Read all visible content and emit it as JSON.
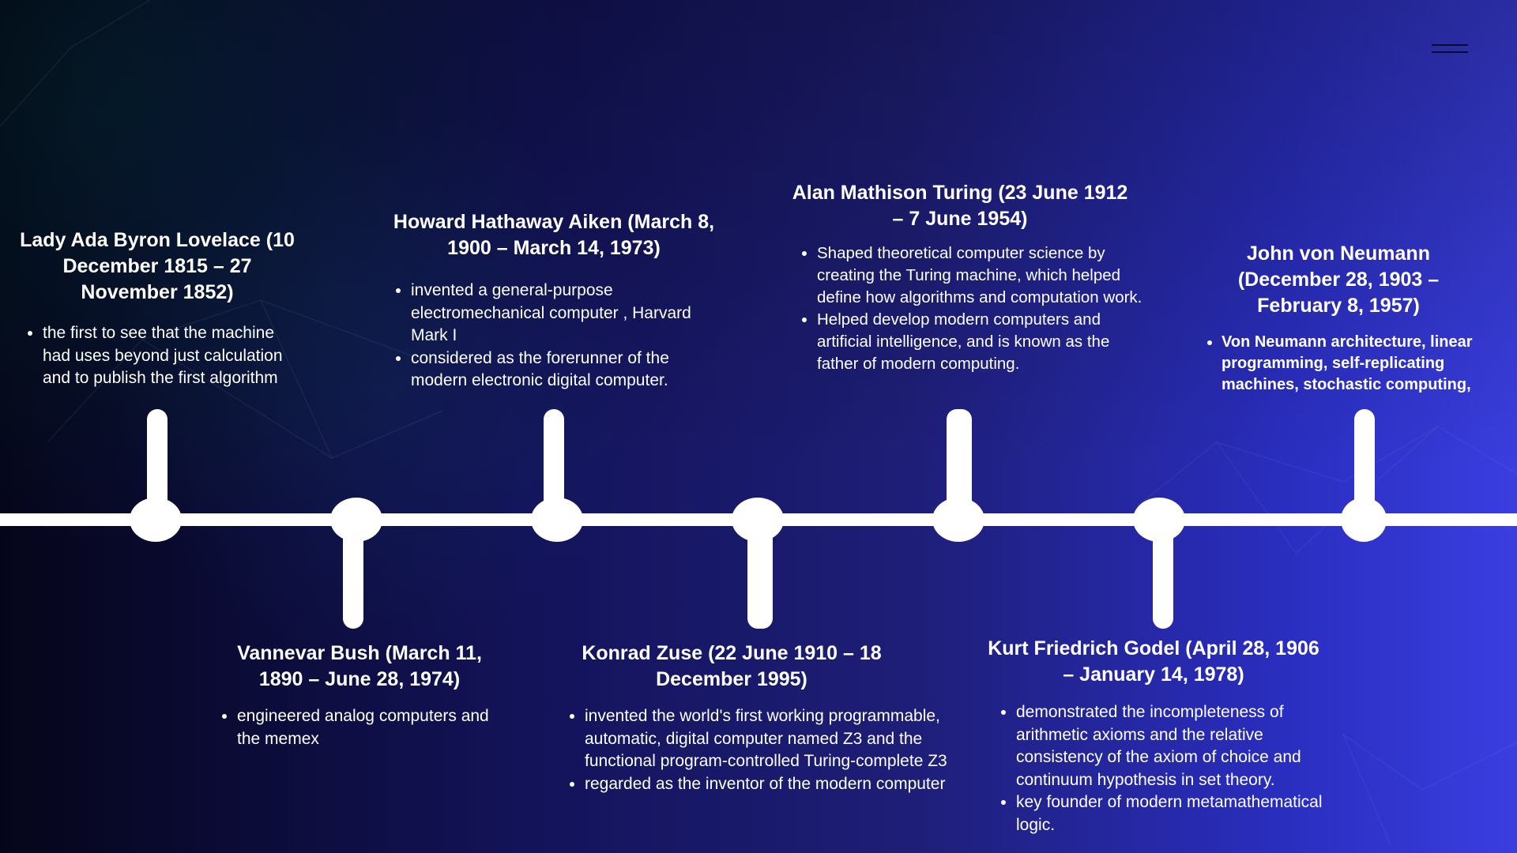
{
  "timeline": {
    "entries": [
      {
        "title": "Lady Ada Byron Lovelace (10 December 1815 – 27 November 1852)",
        "items": [
          "the first to see that the machine had uses beyond just calculation and to publish the first algorithm"
        ]
      },
      {
        "title": "Vannevar Bush (March 11, 1890 – June 28, 1974)",
        "items": [
          "engineered analog computers and the memex"
        ]
      },
      {
        "title": "Howard Hathaway Aiken (March 8, 1900 – March 14, 1973)",
        "items": [
          "invented a general-purpose electromechanical computer , Harvard Mark I",
          "considered as the forerunner of the modern electronic digital computer."
        ]
      },
      {
        "title": "Konrad Zuse (22 June 1910 – 18 December 1995)",
        "items": [
          "invented the world's first working programmable, automatic, digital computer named Z3 and the functional program-controlled Turing-complete Z3",
          "regarded as the inventor of the modern computer"
        ]
      },
      {
        "title": "Alan Mathison Turing (23 June 1912 – 7 June 1954)",
        "items": [
          "Shaped theoretical computer science by creating the Turing machine, which helped define how algorithms and computation work.",
          " Helped develop modern computers and artificial intelligence, and is known as the father of modern computing."
        ]
      },
      {
        "title": "Kurt Friedrich Godel (April 28, 1906 – January 14, 1978)",
        "items": [
          "demonstrated the incompleteness of arithmetic axioms and the relative consistency of the axiom of choice and continuum hypothesis in set theory.",
          " key founder of modern metamathematical logic."
        ]
      },
      {
        "title": "John von Neumann (December 28, 1903 – February 8, 1957)",
        "items": [
          "Von Neumann architecture, linear programming, self-replicating machines, stochastic computing,"
        ]
      }
    ]
  },
  "icons": {
    "menu": "hamburger-menu-icon"
  },
  "colors": {
    "accent": "#ffffff",
    "bg_left": "#05051a",
    "bg_right": "#3a3ee0"
  }
}
